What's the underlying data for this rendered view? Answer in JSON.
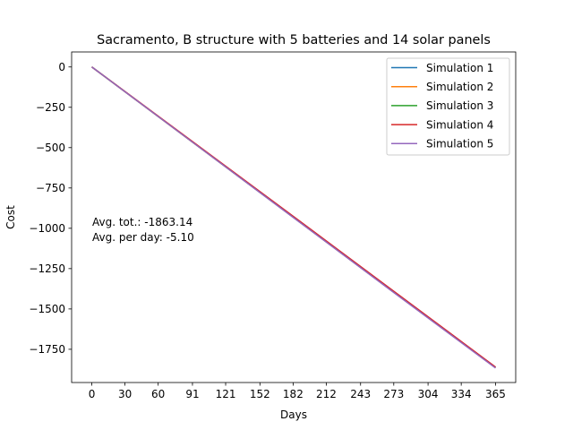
{
  "chart_data": {
    "type": "line",
    "title": "Sacramento, B structure with 5 batteries and 14 solar panels",
    "xlabel": "Days",
    "ylabel": "Cost",
    "xlim": [
      -18.25,
      383.25
    ],
    "ylim": [
      -1956.0,
      93.0
    ],
    "xticks": [
      0,
      30,
      60,
      91,
      121,
      152,
      182,
      212,
      243,
      273,
      304,
      334,
      365
    ],
    "yticks": [
      0,
      -250,
      -500,
      -750,
      -1000,
      -1250,
      -1500,
      -1750
    ],
    "ytick_labels": [
      "0",
      "−250",
      "−500",
      "−750",
      "−1000",
      "−1250",
      "−1500",
      "−1750"
    ],
    "grid": false,
    "legend_position": "top-right",
    "annotations": [
      "Avg. tot.: -1863.14",
      "Avg. per day: -5.10"
    ],
    "series": [
      {
        "name": "Simulation 1",
        "color": "#1f77b4",
        "x": [
          0,
          91,
          182,
          273,
          365
        ],
        "y": [
          0,
          -465,
          -930,
          -1396,
          -1862
        ]
      },
      {
        "name": "Simulation 2",
        "color": "#ff7f0e",
        "x": [
          0,
          91,
          182,
          273,
          365
        ],
        "y": [
          0,
          -466,
          -931,
          -1397,
          -1864
        ]
      },
      {
        "name": "Simulation 3",
        "color": "#2ca02c",
        "x": [
          0,
          91,
          182,
          273,
          365
        ],
        "y": [
          0,
          -465,
          -931,
          -1396,
          -1863
        ]
      },
      {
        "name": "Simulation 4",
        "color": "#d62728",
        "x": [
          0,
          91,
          182,
          273,
          365
        ],
        "y": [
          0,
          -462,
          -925,
          -1390,
          -1860
        ]
      },
      {
        "name": "Simulation 5",
        "color": "#9467bd",
        "x": [
          0,
          91,
          182,
          273,
          365
        ],
        "y": [
          0,
          -466,
          -932,
          -1398,
          -1866
        ]
      }
    ]
  }
}
